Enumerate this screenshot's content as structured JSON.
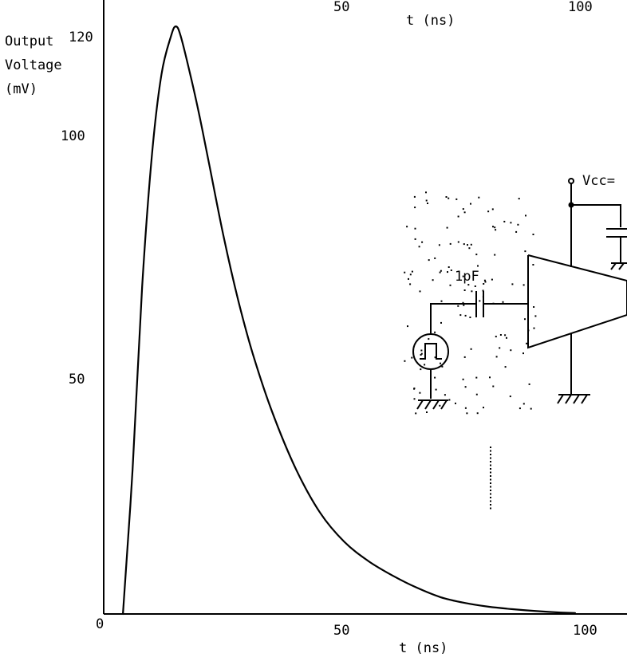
{
  "chart_data": {
    "type": "line",
    "title": "",
    "xlabel": "t (ns)",
    "ylabel_lines": [
      "Output",
      "Voltage",
      "(mV)"
    ],
    "xlim": [
      0,
      103
    ],
    "ylim": [
      0,
      124
    ],
    "x_ticks": [
      "50",
      "100"
    ],
    "y_ticks": [
      "0",
      "50",
      "100",
      "120"
    ],
    "top_x_ticks": [
      "50",
      "100"
    ],
    "top_xlabel": "t  (ns)",
    "grid": false,
    "legend": "none",
    "series": [
      {
        "x": [
          4,
          6,
          8,
          10,
          12,
          14,
          15,
          16,
          18,
          20,
          22,
          25,
          28,
          31,
          35,
          40,
          45,
          50,
          55,
          60,
          65,
          70,
          75,
          80,
          85,
          90,
          95,
          98
        ],
        "y": [
          0,
          30,
          68,
          95,
          112,
          120,
          122,
          120,
          112,
          103,
          93,
          78,
          65,
          54,
          42,
          30,
          21,
          15,
          11,
          8,
          5.5,
          3.5,
          2.3,
          1.5,
          1,
          0.6,
          0.3,
          0.2
        ]
      }
    ]
  },
  "inset_circuit": {
    "capacitor_label": "1pF",
    "supply_label": "Vcc="
  }
}
